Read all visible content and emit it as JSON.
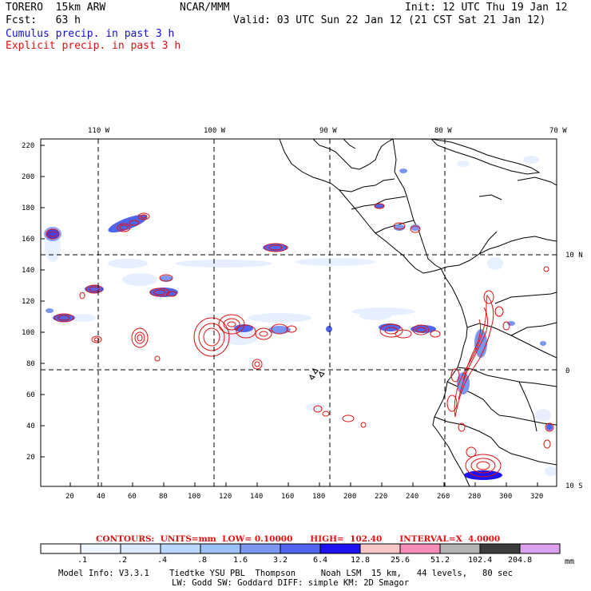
{
  "header": {
    "model": "TORERO  15km ARW",
    "org": "NCAR/MMM",
    "init": "Init: 12 UTC Thu 19 Jan 12",
    "fcst": "Fcst:   63 h",
    "valid": "Valid: 03 UTC Sun 22 Jan 12 (21 CST Sat 21 Jan 12)",
    "cumulus": "Cumulus precip. in past 3 h",
    "explicit": "Explicit precip. in past 3 h"
  },
  "axes": {
    "top_labels": [
      "110 W",
      "100 W",
      "90 W",
      "80 W",
      "70 W"
    ],
    "right_labels": [
      "10 N",
      "0",
      "10 S"
    ],
    "y_ticks": [
      "220",
      "200",
      "180",
      "160",
      "140",
      "120",
      "100",
      "80",
      "60",
      "40",
      "20"
    ],
    "x_ticks": [
      "20",
      "40",
      "60",
      "80",
      "100",
      "120",
      "140",
      "160",
      "180",
      "200",
      "220",
      "240",
      "260",
      "280",
      "300",
      "320"
    ]
  },
  "legend": {
    "contours_text": "CONTOURS:  UNITS=mm  LOW= 0.10000      HIGH=  102.40      INTERVAL=X  4.0000",
    "values": [
      ".1",
      ".2",
      ".4",
      ".8",
      "1.6",
      "3.2",
      "6.4",
      "12.8",
      "25.6",
      "51.2",
      "102.4",
      "204.8"
    ],
    "units": "mm",
    "colors": [
      "#ffffff",
      "#f0f6ff",
      "#dce9ff",
      "#bcd7ff",
      "#9cc0fa",
      "#7a96f0",
      "#5065ee",
      "#1c12f2",
      "#f8c8c8",
      "#f88cb8",
      "#b4b4b4",
      "#3c3c3c",
      "#dca0f0"
    ]
  },
  "footer": {
    "line1": "Model Info: V3.3.1    Tiedtke YSU PBL  Thompson     Noah LSM  15 km,   44 levels,   80 sec",
    "line2": "LW: Godd SW: Goddard DIFF: simple KM: 2D Smagor"
  }
}
